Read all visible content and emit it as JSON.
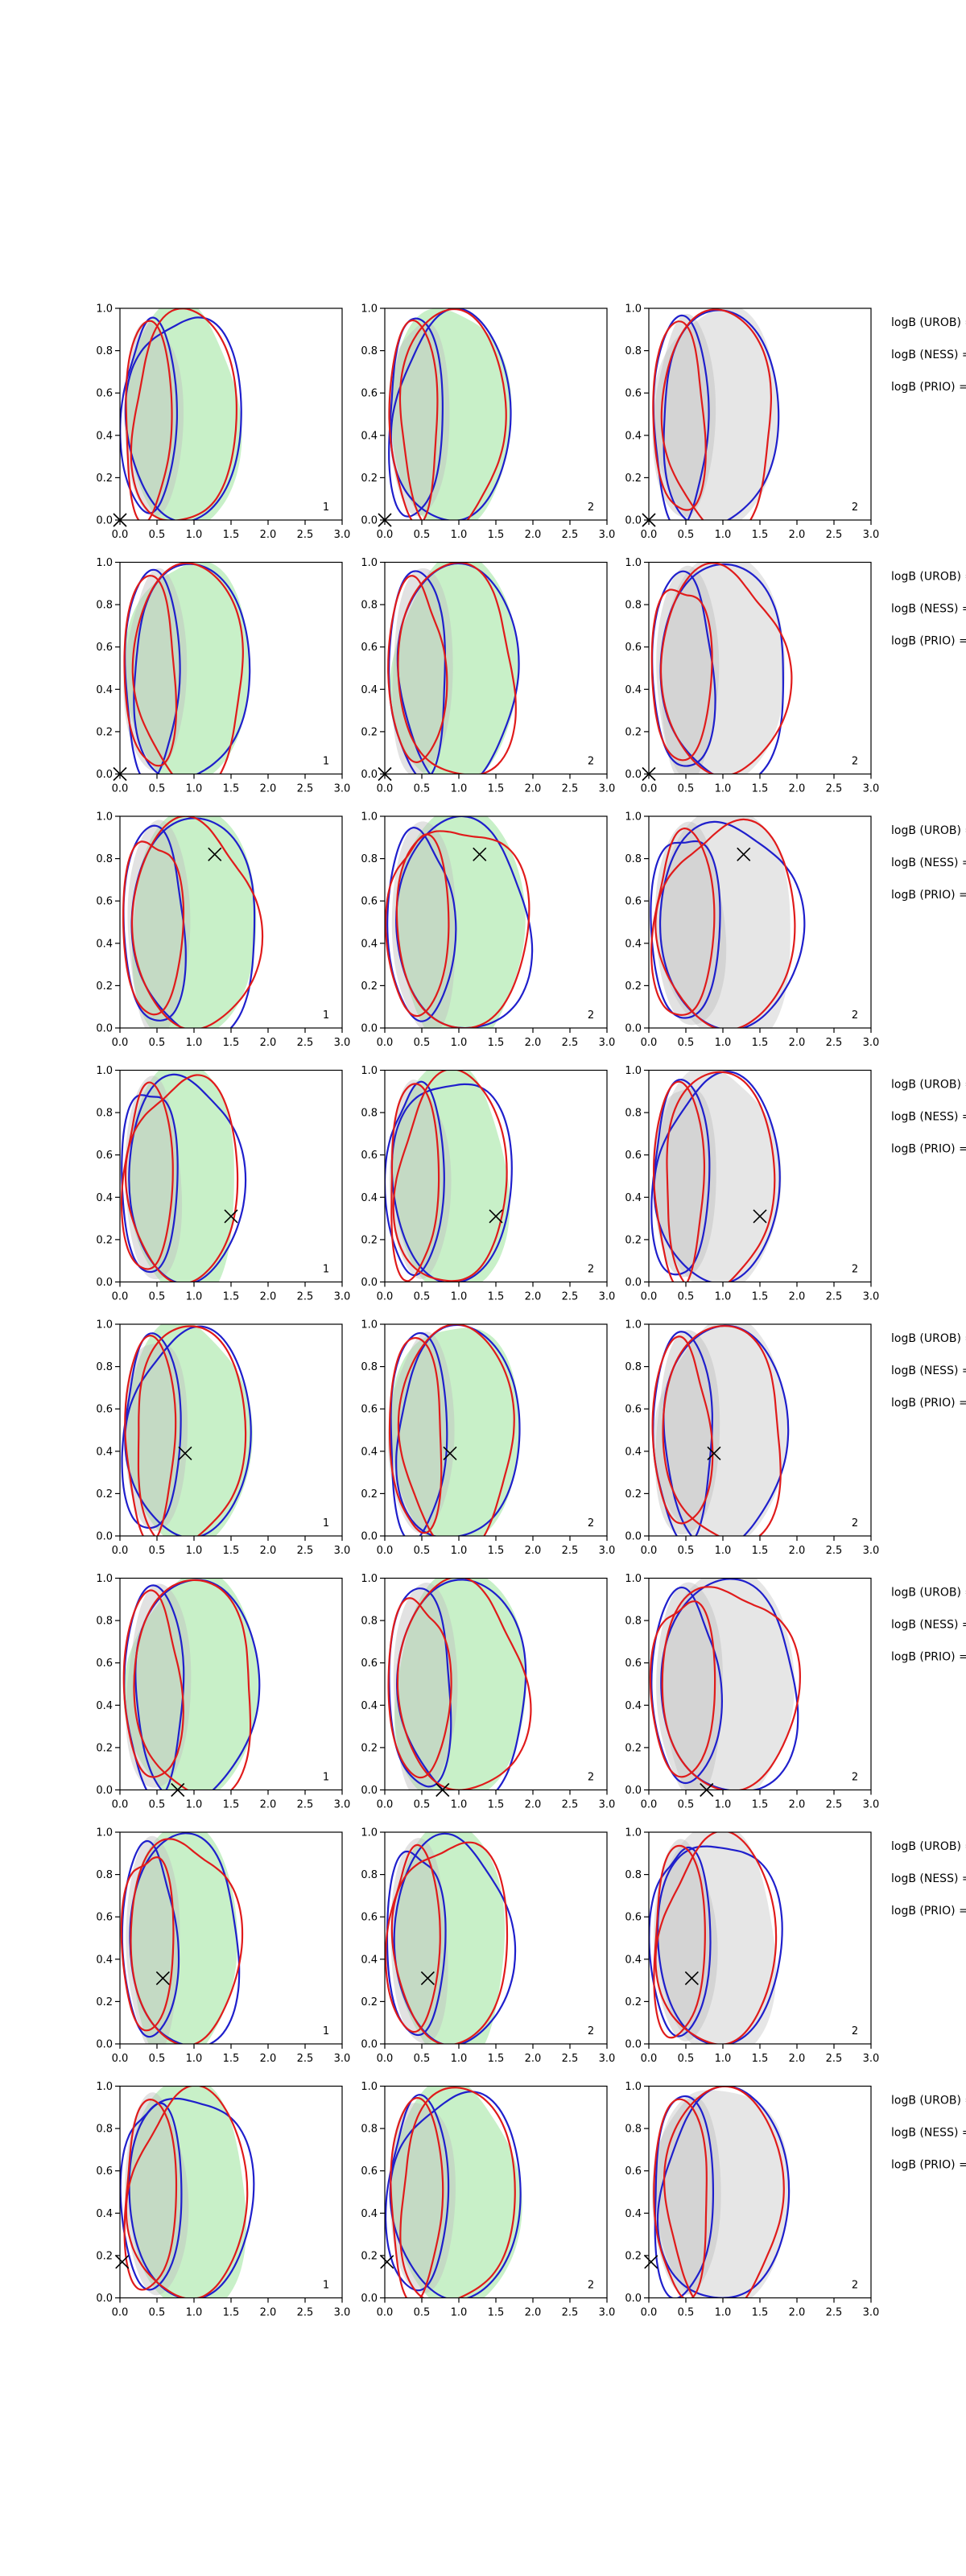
{
  "figure": {
    "rows": 8,
    "cols": 3,
    "row_side_labels": [
      "logB (UROB) =",
      "logB (NESS) =",
      "logB (PRIO) ="
    ]
  },
  "axes": {
    "xlim": [
      0,
      3
    ],
    "ylim": [
      0,
      1
    ],
    "xticks": [
      "0.0",
      "0.5",
      "1.0",
      "1.5",
      "2.0",
      "2.5",
      "3.0"
    ],
    "yticks": [
      "0.0",
      "0.2",
      "0.4",
      "0.6",
      "0.8",
      "1.0"
    ]
  },
  "panel_corner_labels": [
    "1",
    "2",
    "2"
  ],
  "colors": {
    "panel1_fill": "#c8f0c8",
    "panel2_fill": "#c8f0c8",
    "panel3_fill": "#e6e6e6",
    "inner_fill": "#bfbfbf",
    "blue": "#1f1fcc",
    "red": "#e01b1b",
    "marker": "#000000",
    "axis": "#000000"
  },
  "chart_data": [
    {
      "type": "scatter",
      "row": 1,
      "marker_x": 0.0,
      "marker_y": 0.0
    },
    {
      "type": "scatter",
      "row": 2,
      "marker_x": 0.0,
      "marker_y": 0.0
    },
    {
      "type": "scatter",
      "row": 3,
      "marker_x": 1.28,
      "marker_y": 0.82
    },
    {
      "type": "scatter",
      "row": 4,
      "marker_x": 1.5,
      "marker_y": 0.31
    },
    {
      "type": "scatter",
      "row": 5,
      "marker_x": 0.88,
      "marker_y": 0.39
    },
    {
      "type": "scatter",
      "row": 6,
      "marker_x": 0.78,
      "marker_y": 0.0
    },
    {
      "type": "scatter",
      "row": 7,
      "marker_x": 0.58,
      "marker_y": 0.31
    },
    {
      "type": "scatter",
      "row": 8,
      "marker_x": 0.03,
      "marker_y": 0.17
    }
  ]
}
